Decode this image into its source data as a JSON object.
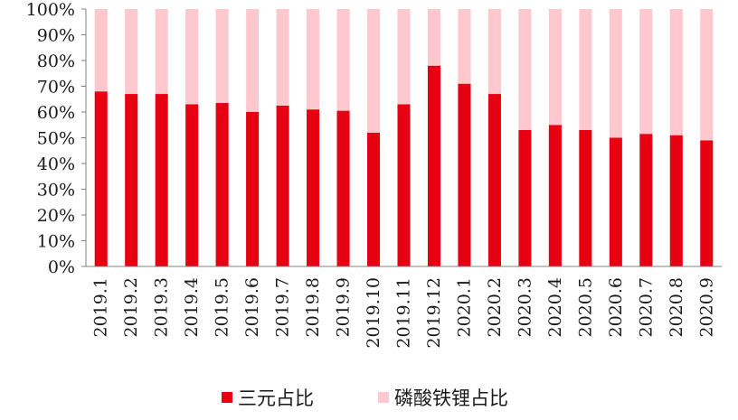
{
  "chart_data": {
    "type": "bar",
    "stacked": true,
    "categories": [
      "2019.1",
      "2019.2",
      "2019.3",
      "2019.4",
      "2019.5",
      "2019.6",
      "2019.7",
      "2019.8",
      "2019.9",
      "2019.10",
      "2019.11",
      "2019.12",
      "2020.1",
      "2020.2",
      "2020.3",
      "2020.4",
      "2020.5",
      "2020.6",
      "2020.7",
      "2020.8",
      "2020.9"
    ],
    "series": [
      {
        "name": "三元占比",
        "color": "#e60012",
        "values": [
          68,
          67,
          67,
          63,
          63.5,
          60,
          62.5,
          61,
          60.5,
          52,
          63,
          78,
          71,
          67,
          53,
          55,
          53,
          50,
          51.5,
          51,
          49
        ]
      },
      {
        "name": "磷酸铁锂占比",
        "color": "#ffc7ce",
        "values": [
          32,
          33,
          33,
          37,
          36.5,
          40,
          37.5,
          39,
          39.5,
          48,
          37,
          22,
          29,
          33,
          47,
          45,
          47,
          50,
          48.5,
          49,
          51
        ]
      }
    ],
    "y_ticks": [
      "0%",
      "10%",
      "20%",
      "30%",
      "40%",
      "50%",
      "60%",
      "70%",
      "80%",
      "90%",
      "100%"
    ],
    "ylim": [
      0,
      100
    ],
    "title": "",
    "xlabel": "",
    "ylabel": "",
    "grid": false,
    "legend_position": "bottom-center",
    "axis_color": "#808080"
  }
}
